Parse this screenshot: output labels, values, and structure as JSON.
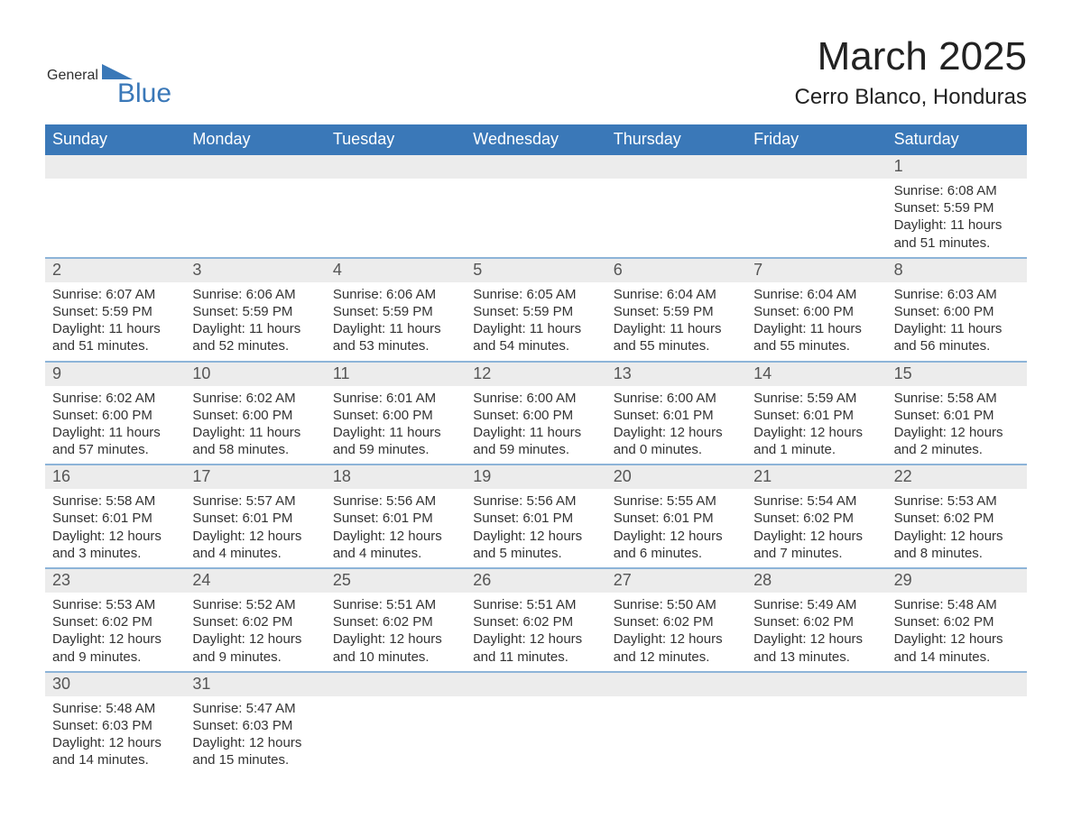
{
  "logo": {
    "text1": "General",
    "text2": "Blue",
    "accent_color": "#3a78b8"
  },
  "title": "March 2025",
  "subtitle": "Cerro Blanco, Honduras",
  "colors": {
    "header_bg": "#3a78b8",
    "header_text": "#ffffff",
    "daynum_bg": "#ececec",
    "border": "#8db4d8",
    "body_bg": "#ffffff",
    "text": "#2e2e2e"
  },
  "days_of_week": [
    "Sunday",
    "Monday",
    "Tuesday",
    "Wednesday",
    "Thursday",
    "Friday",
    "Saturday"
  ],
  "weeks": [
    [
      {
        "num": "",
        "lines": []
      },
      {
        "num": "",
        "lines": []
      },
      {
        "num": "",
        "lines": []
      },
      {
        "num": "",
        "lines": []
      },
      {
        "num": "",
        "lines": []
      },
      {
        "num": "",
        "lines": []
      },
      {
        "num": "1",
        "lines": [
          "Sunrise: 6:08 AM",
          "Sunset: 5:59 PM",
          "Daylight: 11 hours and 51 minutes."
        ]
      }
    ],
    [
      {
        "num": "2",
        "lines": [
          "Sunrise: 6:07 AM",
          "Sunset: 5:59 PM",
          "Daylight: 11 hours and 51 minutes."
        ]
      },
      {
        "num": "3",
        "lines": [
          "Sunrise: 6:06 AM",
          "Sunset: 5:59 PM",
          "Daylight: 11 hours and 52 minutes."
        ]
      },
      {
        "num": "4",
        "lines": [
          "Sunrise: 6:06 AM",
          "Sunset: 5:59 PM",
          "Daylight: 11 hours and 53 minutes."
        ]
      },
      {
        "num": "5",
        "lines": [
          "Sunrise: 6:05 AM",
          "Sunset: 5:59 PM",
          "Daylight: 11 hours and 54 minutes."
        ]
      },
      {
        "num": "6",
        "lines": [
          "Sunrise: 6:04 AM",
          "Sunset: 5:59 PM",
          "Daylight: 11 hours and 55 minutes."
        ]
      },
      {
        "num": "7",
        "lines": [
          "Sunrise: 6:04 AM",
          "Sunset: 6:00 PM",
          "Daylight: 11 hours and 55 minutes."
        ]
      },
      {
        "num": "8",
        "lines": [
          "Sunrise: 6:03 AM",
          "Sunset: 6:00 PM",
          "Daylight: 11 hours and 56 minutes."
        ]
      }
    ],
    [
      {
        "num": "9",
        "lines": [
          "Sunrise: 6:02 AM",
          "Sunset: 6:00 PM",
          "Daylight: 11 hours and 57 minutes."
        ]
      },
      {
        "num": "10",
        "lines": [
          "Sunrise: 6:02 AM",
          "Sunset: 6:00 PM",
          "Daylight: 11 hours and 58 minutes."
        ]
      },
      {
        "num": "11",
        "lines": [
          "Sunrise: 6:01 AM",
          "Sunset: 6:00 PM",
          "Daylight: 11 hours and 59 minutes."
        ]
      },
      {
        "num": "12",
        "lines": [
          "Sunrise: 6:00 AM",
          "Sunset: 6:00 PM",
          "Daylight: 11 hours and 59 minutes."
        ]
      },
      {
        "num": "13",
        "lines": [
          "Sunrise: 6:00 AM",
          "Sunset: 6:01 PM",
          "Daylight: 12 hours and 0 minutes."
        ]
      },
      {
        "num": "14",
        "lines": [
          "Sunrise: 5:59 AM",
          "Sunset: 6:01 PM",
          "Daylight: 12 hours and 1 minute."
        ]
      },
      {
        "num": "15",
        "lines": [
          "Sunrise: 5:58 AM",
          "Sunset: 6:01 PM",
          "Daylight: 12 hours and 2 minutes."
        ]
      }
    ],
    [
      {
        "num": "16",
        "lines": [
          "Sunrise: 5:58 AM",
          "Sunset: 6:01 PM",
          "Daylight: 12 hours and 3 minutes."
        ]
      },
      {
        "num": "17",
        "lines": [
          "Sunrise: 5:57 AM",
          "Sunset: 6:01 PM",
          "Daylight: 12 hours and 4 minutes."
        ]
      },
      {
        "num": "18",
        "lines": [
          "Sunrise: 5:56 AM",
          "Sunset: 6:01 PM",
          "Daylight: 12 hours and 4 minutes."
        ]
      },
      {
        "num": "19",
        "lines": [
          "Sunrise: 5:56 AM",
          "Sunset: 6:01 PM",
          "Daylight: 12 hours and 5 minutes."
        ]
      },
      {
        "num": "20",
        "lines": [
          "Sunrise: 5:55 AM",
          "Sunset: 6:01 PM",
          "Daylight: 12 hours and 6 minutes."
        ]
      },
      {
        "num": "21",
        "lines": [
          "Sunrise: 5:54 AM",
          "Sunset: 6:02 PM",
          "Daylight: 12 hours and 7 minutes."
        ]
      },
      {
        "num": "22",
        "lines": [
          "Sunrise: 5:53 AM",
          "Sunset: 6:02 PM",
          "Daylight: 12 hours and 8 minutes."
        ]
      }
    ],
    [
      {
        "num": "23",
        "lines": [
          "Sunrise: 5:53 AM",
          "Sunset: 6:02 PM",
          "Daylight: 12 hours and 9 minutes."
        ]
      },
      {
        "num": "24",
        "lines": [
          "Sunrise: 5:52 AM",
          "Sunset: 6:02 PM",
          "Daylight: 12 hours and 9 minutes."
        ]
      },
      {
        "num": "25",
        "lines": [
          "Sunrise: 5:51 AM",
          "Sunset: 6:02 PM",
          "Daylight: 12 hours and 10 minutes."
        ]
      },
      {
        "num": "26",
        "lines": [
          "Sunrise: 5:51 AM",
          "Sunset: 6:02 PM",
          "Daylight: 12 hours and 11 minutes."
        ]
      },
      {
        "num": "27",
        "lines": [
          "Sunrise: 5:50 AM",
          "Sunset: 6:02 PM",
          "Daylight: 12 hours and 12 minutes."
        ]
      },
      {
        "num": "28",
        "lines": [
          "Sunrise: 5:49 AM",
          "Sunset: 6:02 PM",
          "Daylight: 12 hours and 13 minutes."
        ]
      },
      {
        "num": "29",
        "lines": [
          "Sunrise: 5:48 AM",
          "Sunset: 6:02 PM",
          "Daylight: 12 hours and 14 minutes."
        ]
      }
    ],
    [
      {
        "num": "30",
        "lines": [
          "Sunrise: 5:48 AM",
          "Sunset: 6:03 PM",
          "Daylight: 12 hours and 14 minutes."
        ]
      },
      {
        "num": "31",
        "lines": [
          "Sunrise: 5:47 AM",
          "Sunset: 6:03 PM",
          "Daylight: 12 hours and 15 minutes."
        ]
      },
      {
        "num": "",
        "lines": []
      },
      {
        "num": "",
        "lines": []
      },
      {
        "num": "",
        "lines": []
      },
      {
        "num": "",
        "lines": []
      },
      {
        "num": "",
        "lines": []
      }
    ]
  ]
}
